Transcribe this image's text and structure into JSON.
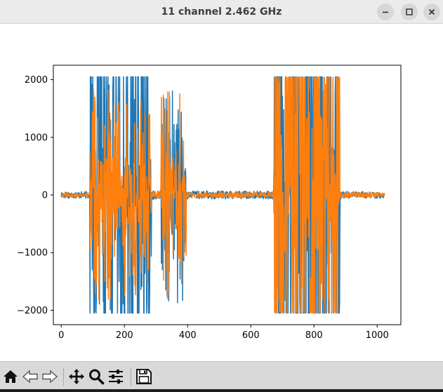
{
  "window": {
    "title": "11 channel 2.462 GHz"
  },
  "toolbar": {
    "tools": [
      {
        "name": "home",
        "icon": "home-icon"
      },
      {
        "name": "back",
        "icon": "back-arrow-icon"
      },
      {
        "name": "forward",
        "icon": "forward-arrow-icon"
      },
      {
        "name": "pan",
        "icon": "move-icon"
      },
      {
        "name": "zoom",
        "icon": "magnifier-icon"
      },
      {
        "name": "configure-subplots",
        "icon": "sliders-icon"
      },
      {
        "name": "save",
        "icon": "floppy-disk-icon"
      }
    ]
  },
  "chart_data": {
    "type": "line",
    "title": "",
    "xlabel": "",
    "ylabel": "",
    "xlim": [
      -25,
      1075
    ],
    "ylim": [
      -2250,
      2250
    ],
    "x_ticks": [
      0,
      200,
      400,
      600,
      800,
      1000
    ],
    "y_ticks": [
      -2000,
      -1000,
      0,
      1000,
      2000
    ],
    "x_tick_labels": [
      "0",
      "200",
      "400",
      "600",
      "800",
      "1000"
    ],
    "y_tick_labels": [
      "−2000",
      "−1000",
      "0",
      "1000",
      "2000"
    ],
    "grid": false,
    "legend": "none",
    "x_range": [
      0,
      1023
    ],
    "series": [
      {
        "color": "#1f77b4",
        "segments": [
          {
            "x_start": 0,
            "x_end": 90,
            "peak": 60
          },
          {
            "x_start": 90,
            "x_end": 285,
            "peak": 2050
          },
          {
            "x_start": 285,
            "x_end": 315,
            "peak": 80
          },
          {
            "x_start": 315,
            "x_end": 395,
            "peak": 1950
          },
          {
            "x_start": 395,
            "x_end": 672,
            "peak": 70
          },
          {
            "x_start": 672,
            "x_end": 882,
            "peak": 2050
          },
          {
            "x_start": 882,
            "x_end": 1023,
            "peak": 60
          }
        ]
      },
      {
        "color": "#ff7f0e",
        "segments": [
          {
            "x_start": 0,
            "x_end": 90,
            "peak": 45
          },
          {
            "x_start": 90,
            "x_end": 285,
            "peak": 1850
          },
          {
            "x_start": 285,
            "x_end": 315,
            "peak": 60
          },
          {
            "x_start": 315,
            "x_end": 395,
            "peak": 1800
          },
          {
            "x_start": 395,
            "x_end": 672,
            "peak": 50
          },
          {
            "x_start": 672,
            "x_end": 882,
            "peak": 2040
          },
          {
            "x_start": 882,
            "x_end": 1023,
            "peak": 45
          }
        ]
      }
    ]
  }
}
